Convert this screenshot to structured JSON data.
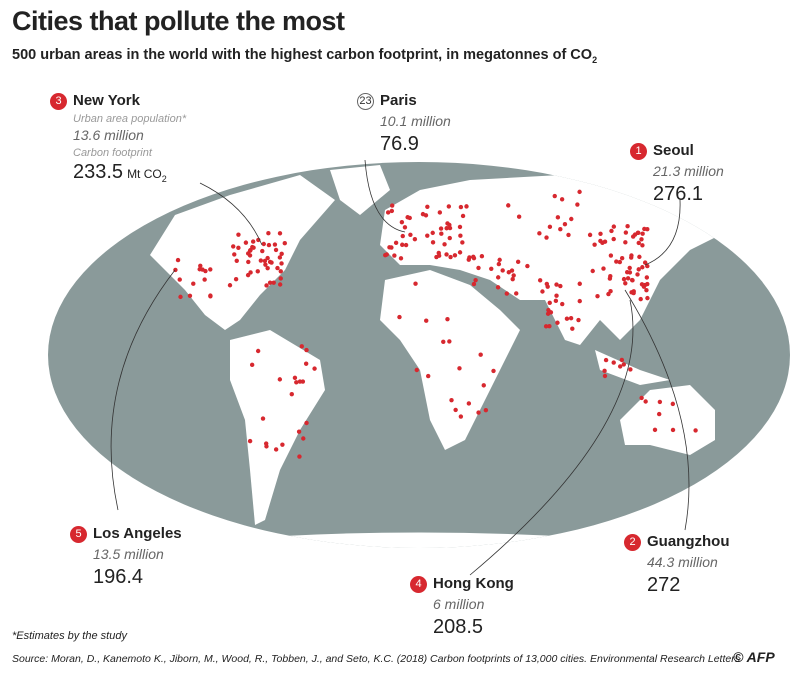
{
  "header": {
    "title": "Cities that pollute the most",
    "subtitle": "500 urban areas in the world with the highest carbon footprint, in megatonnes of CO",
    "subtitle_subscript": "2"
  },
  "legend": {
    "population_label": "Urban area population*",
    "footprint_label": "Carbon footprint",
    "unit": "Mt CO",
    "unit_subscript": "2"
  },
  "cities": [
    {
      "rank": 3,
      "name": "New York",
      "population": "13.6 million",
      "footprint": 233.5
    },
    {
      "rank": 23,
      "name": "Paris",
      "population": "10.1 million",
      "footprint": 76.9
    },
    {
      "rank": 1,
      "name": "Seoul",
      "population": "21.3 million",
      "footprint": 276.1
    },
    {
      "rank": 5,
      "name": "Los Angeles",
      "population": "13.5 million",
      "footprint": 196.4
    },
    {
      "rank": 2,
      "name": "Guangzhou",
      "population": "44.3 million",
      "footprint": 272
    },
    {
      "rank": 4,
      "name": "Hong Kong",
      "population": "6 million",
      "footprint": 208.5
    }
  ],
  "footer": {
    "footnote": "*Estimates by the study",
    "source": "Source: Moran, D., Kanemoto K., Jiborn, M., Wood, R., Tobben, J., and Seto, K.C. (2018) Carbon footprints of 13,000 cities. Environmental Research Letters",
    "credit": "© AFP"
  }
}
